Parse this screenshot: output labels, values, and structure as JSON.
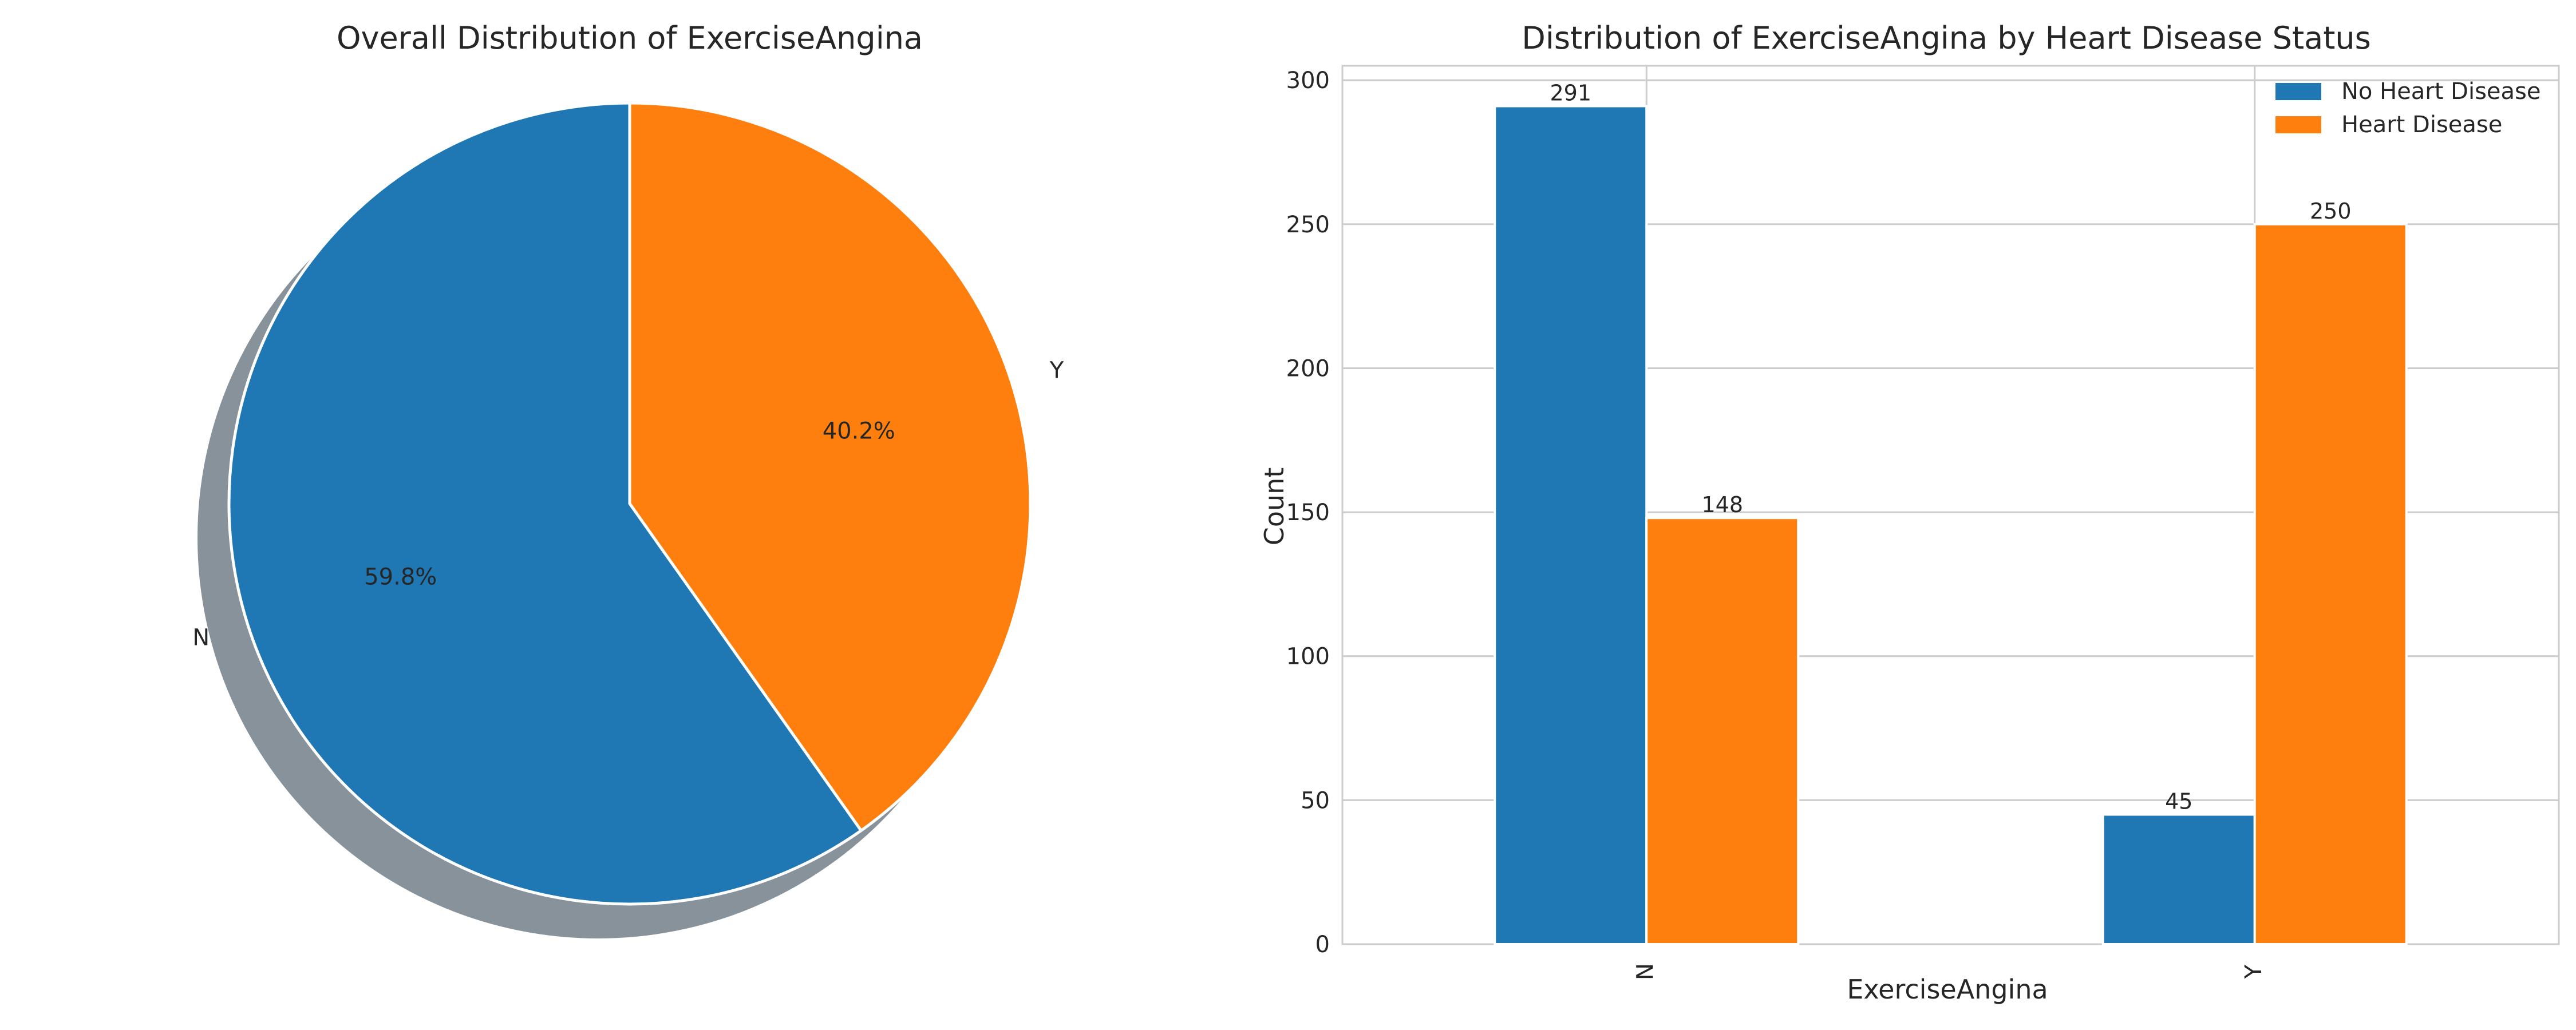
{
  "chart_data": [
    {
      "type": "pie",
      "title": "Overall Distribution of ExerciseAngina",
      "labels": [
        "N",
        "Y"
      ],
      "values": [
        59.8,
        40.2
      ],
      "percent_labels": [
        "59.8%",
        "40.2%"
      ],
      "colors": [
        "#1f77b4",
        "#ff7f0e"
      ],
      "shadow": true
    },
    {
      "type": "bar",
      "title": "Distribution of ExerciseAngina by Heart Disease Status",
      "xlabel": "ExerciseAngina",
      "ylabel": "Count",
      "categories": [
        "N",
        "Y"
      ],
      "series": [
        {
          "name": "No Heart Disease",
          "values": [
            291,
            45
          ],
          "color": "#1f77b4"
        },
        {
          "name": "Heart Disease",
          "values": [
            148,
            250
          ],
          "color": "#ff7f0e"
        }
      ],
      "ylim": [
        0,
        305
      ],
      "yticks": [
        0,
        50,
        100,
        150,
        200,
        250,
        300
      ],
      "grid": true,
      "legend": "top-right"
    }
  ]
}
